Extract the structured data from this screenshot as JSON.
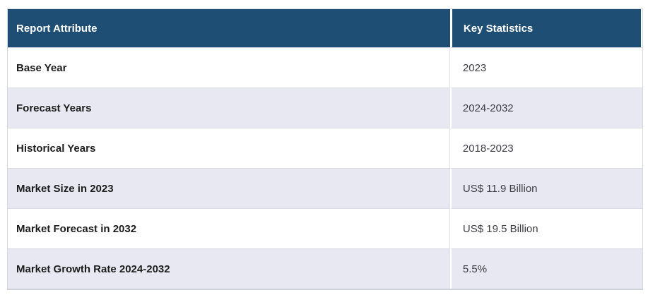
{
  "table": {
    "columns": [
      {
        "label": "Report Attribute"
      },
      {
        "label": "Key Statistics"
      }
    ],
    "rows": [
      {
        "attribute": "Base Year",
        "value": "2023"
      },
      {
        "attribute": "Forecast Years",
        "value": "2024-2032"
      },
      {
        "attribute": "Historical Years",
        "value": "2018-2023"
      },
      {
        "attribute": "Market Size in 2023",
        "value": "US$ 11.9 Billion"
      },
      {
        "attribute": "Market Forecast in 2032",
        "value": "US$ 19.5 Billion"
      },
      {
        "attribute": "Market Growth Rate 2024-2032",
        "value": "5.5%"
      }
    ]
  },
  "colors": {
    "header_bg": "#1F4E74",
    "header_text": "#FFFFFF",
    "stripe_bg": "#E7E8F2",
    "row_bg": "#FFFFFF",
    "grid_border": "#DBDCE1",
    "attribute_text": "#1D1D1D",
    "value_text": "#3C3C44"
  }
}
